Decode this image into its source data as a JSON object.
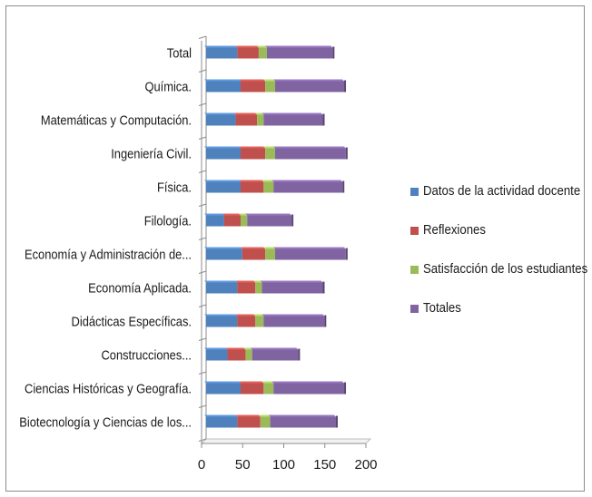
{
  "chart_data": {
    "type": "bar",
    "orientation": "horizontal",
    "stacked": true,
    "categories": [
      "Biotecnología y Ciencias de los...",
      "Ciencias Históricas y Geografía.",
      "Construcciones...",
      "Didácticas Específicas.",
      "Economía Aplicada.",
      "Economía y Administración de...",
      "Filología.",
      "Física.",
      "Ingeniería Civil.",
      "Matemáticas y Computación.",
      "Química.",
      "Total"
    ],
    "series": [
      {
        "name": "Datos de la actividad docente",
        "color": "#4f81bd",
        "values": [
          38,
          42,
          26,
          38,
          38,
          44,
          22,
          42,
          42,
          36,
          42,
          38
        ]
      },
      {
        "name": "Reflexiones",
        "color": "#c0504d",
        "values": [
          28,
          28,
          22,
          22,
          22,
          28,
          20,
          28,
          30,
          26,
          30,
          26
        ]
      },
      {
        "name": "Satisfacción de los estudiantes",
        "color": "#9bbb59",
        "values": [
          12,
          12,
          8,
          10,
          8,
          12,
          8,
          12,
          12,
          8,
          12,
          10
        ]
      },
      {
        "name": "Totales",
        "color": "#8064a2",
        "values": [
          80,
          86,
          56,
          74,
          74,
          86,
          54,
          84,
          86,
          72,
          84,
          80
        ]
      }
    ],
    "xlim": [
      0,
      200
    ],
    "xticks": [
      "0",
      "50",
      "100",
      "150",
      "200"
    ],
    "grid": false,
    "legend_position": "right"
  }
}
